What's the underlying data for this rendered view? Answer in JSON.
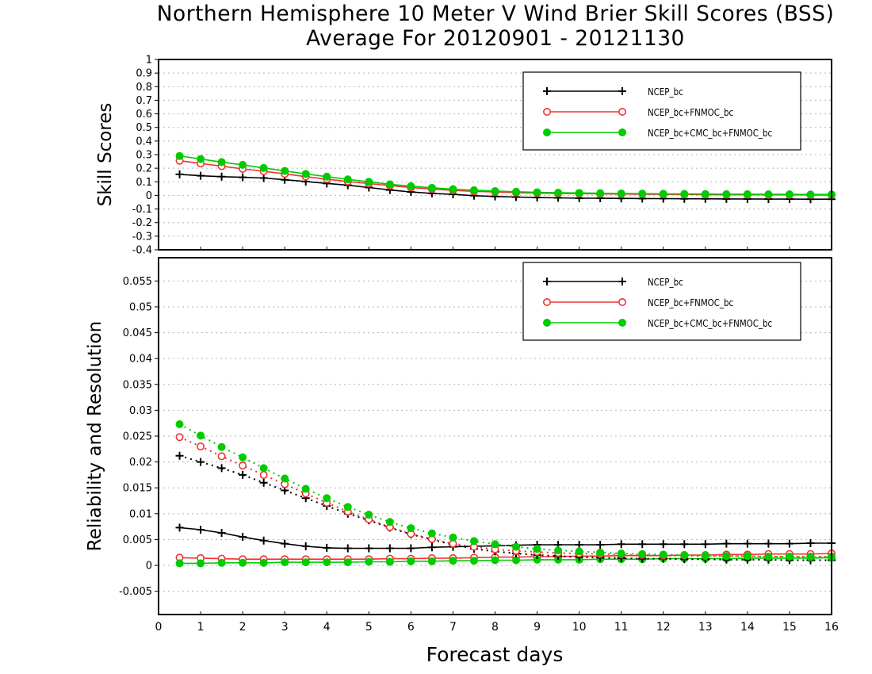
{
  "title": "Northern Hemisphere 10 Meter V Wind Brier Skill Scores (BSS)",
  "subtitle": "Average For 20120901 - 20121130",
  "xlabel": "Forecast days",
  "chart_data": [
    {
      "type": "line",
      "ylabel": "Skill Scores",
      "ylim": [
        -0.4,
        1
      ],
      "xlim": [
        0,
        16
      ],
      "yticks": [
        "-0.4",
        "-0.3",
        "-0.2",
        "-0.1",
        "0",
        "0.1",
        "0.2",
        "0.3",
        "0.4",
        "0.5",
        "0.6",
        "0.7",
        "0.8",
        "0.9",
        "1"
      ],
      "xticks": [
        "0",
        "1",
        "2",
        "3",
        "4",
        "5",
        "6",
        "7",
        "8",
        "9",
        "10",
        "11",
        "12",
        "13",
        "14",
        "15",
        "16"
      ],
      "grid": "horizontal dotted",
      "legend_position": "top-right",
      "x": [
        0.5,
        1,
        1.5,
        2,
        2.5,
        3,
        3.5,
        4,
        4.5,
        5,
        5.5,
        6,
        6.5,
        7,
        7.5,
        8,
        8.5,
        9,
        9.5,
        10,
        10.5,
        11,
        11.5,
        12,
        12.5,
        13,
        13.5,
        14,
        14.5,
        15,
        15.5,
        16
      ],
      "series": [
        {
          "name": "NCEP_bc",
          "color": "#000000",
          "marker": "plus",
          "style": "solid",
          "values": [
            0.155,
            0.145,
            0.138,
            0.133,
            0.128,
            0.115,
            0.102,
            0.088,
            0.075,
            0.058,
            0.04,
            0.025,
            0.015,
            0.008,
            -0.002,
            -0.008,
            -0.012,
            -0.016,
            -0.018,
            -0.02,
            -0.021,
            -0.022,
            -0.023,
            -0.024,
            -0.025,
            -0.025,
            -0.026,
            -0.026,
            -0.027,
            -0.027,
            -0.028,
            -0.028
          ]
        },
        {
          "name": "NCEP_bc+FNMOC_bc",
          "color": "#ee3333",
          "marker": "circle-open",
          "style": "solid",
          "values": [
            0.255,
            0.235,
            0.215,
            0.195,
            0.178,
            0.158,
            0.138,
            0.12,
            0.102,
            0.087,
            0.072,
            0.058,
            0.047,
            0.037,
            0.03,
            0.025,
            0.02,
            0.017,
            0.015,
            0.013,
            0.011,
            0.01,
            0.009,
            0.008,
            0.007,
            0.006,
            0.005,
            0.005,
            0.004,
            0.004,
            0.003,
            0.003
          ]
        },
        {
          "name": "NCEP_bc+CMC_bc+FNMOC_bc",
          "color": "#00cc00",
          "marker": "circle-filled",
          "style": "solid",
          "values": [
            0.29,
            0.268,
            0.245,
            0.225,
            0.202,
            0.18,
            0.158,
            0.138,
            0.118,
            0.1,
            0.082,
            0.068,
            0.056,
            0.046,
            0.038,
            0.032,
            0.027,
            0.023,
            0.02,
            0.018,
            0.016,
            0.014,
            0.013,
            0.012,
            0.011,
            0.01,
            0.009,
            0.009,
            0.008,
            0.008,
            0.007,
            0.007
          ]
        }
      ]
    },
    {
      "type": "line",
      "ylabel": "Reliability and Resolution",
      "ylim": [
        -0.0095,
        0.0595
      ],
      "xlim": [
        0,
        16
      ],
      "yticks": [
        "-0.005",
        "0",
        "0.005",
        "0.01",
        "0.015",
        "0.02",
        "0.025",
        "0.03",
        "0.035",
        "0.04",
        "0.045",
        "0.05",
        "0.055"
      ],
      "xticks": [
        "0",
        "1",
        "2",
        "3",
        "4",
        "5",
        "6",
        "7",
        "8",
        "9",
        "10",
        "11",
        "12",
        "13",
        "14",
        "15",
        "16"
      ],
      "grid": "horizontal dotted",
      "legend_position": "top-right",
      "x": [
        0.5,
        1,
        1.5,
        2,
        2.5,
        3,
        3.5,
        4,
        4.5,
        5,
        5.5,
        6,
        6.5,
        7,
        7.5,
        8,
        8.5,
        9,
        9.5,
        10,
        10.5,
        11,
        11.5,
        12,
        12.5,
        13,
        13.5,
        14,
        14.5,
        15,
        15.5,
        16
      ],
      "series": [
        {
          "name": "NCEP_bc",
          "color": "#000000",
          "marker": "plus",
          "style": "solid",
          "values": [
            0.0073,
            0.0069,
            0.0063,
            0.0055,
            0.0048,
            0.0042,
            0.0037,
            0.0034,
            0.0033,
            0.0033,
            0.0033,
            0.0033,
            0.0035,
            0.0036,
            0.0037,
            0.0038,
            0.0039,
            0.004,
            0.004,
            0.004,
            0.004,
            0.0041,
            0.0041,
            0.0041,
            0.0041,
            0.0041,
            0.0042,
            0.0042,
            0.0042,
            0.0042,
            0.0043,
            0.0043
          ]
        },
        {
          "name": "NCEP_bc+FNMOC_bc",
          "color": "#ee3333",
          "marker": "circle-open",
          "style": "solid",
          "values": [
            0.0015,
            0.0014,
            0.0013,
            0.0012,
            0.0012,
            0.0012,
            0.0012,
            0.0012,
            0.0012,
            0.0012,
            0.0013,
            0.0013,
            0.0014,
            0.0014,
            0.0015,
            0.0016,
            0.0016,
            0.0017,
            0.0017,
            0.0018,
            0.0018,
            0.0019,
            0.0019,
            0.0019,
            0.002,
            0.002,
            0.0021,
            0.0021,
            0.0022,
            0.0022,
            0.0022,
            0.0023
          ]
        },
        {
          "name": "NCEP_bc+CMC_bc+FNMOC_bc",
          "color": "#00cc00",
          "marker": "circle-filled",
          "style": "solid",
          "values": [
            0.0004,
            0.0004,
            0.0005,
            0.0005,
            0.0005,
            0.0006,
            0.0006,
            0.0006,
            0.0006,
            0.0007,
            0.0007,
            0.0008,
            0.0008,
            0.0009,
            0.0009,
            0.001,
            0.001,
            0.0011,
            0.0011,
            0.0011,
            0.0012,
            0.0012,
            0.0012,
            0.0013,
            0.0013,
            0.0013,
            0.0013,
            0.0014,
            0.0014,
            0.0014,
            0.0014,
            0.0015
          ]
        },
        {
          "name": "",
          "color": "#000000",
          "marker": "plus",
          "style": "dotted",
          "values": [
            0.0212,
            0.02,
            0.0188,
            0.0175,
            0.016,
            0.0145,
            0.013,
            0.0115,
            0.01,
            0.0087,
            0.0073,
            0.006,
            0.005,
            0.004,
            0.0032,
            0.0027,
            0.0023,
            0.002,
            0.0018,
            0.0016,
            0.0015,
            0.0014,
            0.0013,
            0.0013,
            0.0012,
            0.0012,
            0.0011,
            0.0011,
            0.0011,
            0.001,
            0.001,
            0.001
          ]
        },
        {
          "name": "",
          "color": "#ee3333",
          "marker": "circle-open",
          "style": "dotted",
          "values": [
            0.0248,
            0.023,
            0.0211,
            0.0193,
            0.0175,
            0.0157,
            0.0139,
            0.0121,
            0.0104,
            0.0089,
            0.0074,
            0.0061,
            0.0051,
            0.0042,
            0.0036,
            0.0031,
            0.0028,
            0.0026,
            0.0024,
            0.0023,
            0.0022,
            0.0021,
            0.002,
            0.0019,
            0.0019,
            0.0018,
            0.0018,
            0.0018,
            0.0017,
            0.0017,
            0.0017,
            0.0017
          ]
        },
        {
          "name": "",
          "color": "#00cc00",
          "marker": "circle-filled",
          "style": "dotted",
          "values": [
            0.0273,
            0.0251,
            0.0229,
            0.0209,
            0.0188,
            0.0168,
            0.0148,
            0.013,
            0.0113,
            0.0098,
            0.0084,
            0.0072,
            0.0062,
            0.0054,
            0.0047,
            0.0041,
            0.0036,
            0.0032,
            0.0029,
            0.0027,
            0.0025,
            0.0023,
            0.0022,
            0.0021,
            0.002,
            0.0019,
            0.0018,
            0.0018,
            0.0017,
            0.0017,
            0.0016,
            0.0016
          ]
        }
      ]
    }
  ]
}
